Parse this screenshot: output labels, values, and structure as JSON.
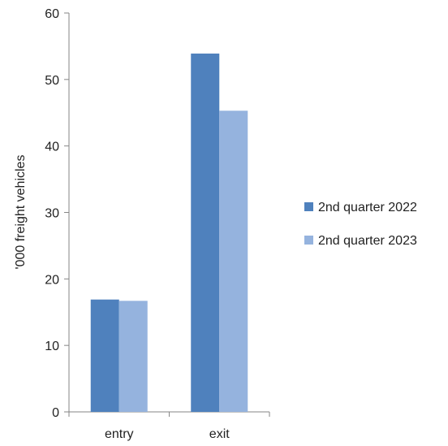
{
  "chart_data": {
    "type": "bar",
    "categories": [
      "entry",
      "exit"
    ],
    "series": [
      {
        "name": "2nd quarter 2022",
        "values": [
          16.9,
          53.9
        ],
        "color": "#4f81bd"
      },
      {
        "name": "2nd quarter 2023",
        "values": [
          16.7,
          45.3
        ],
        "color": "#95b3de"
      }
    ],
    "xlabel": "",
    "ylabel": "'000 freight vehicles",
    "ylim": [
      0,
      60
    ],
    "yticks": [
      0,
      10,
      20,
      30,
      40,
      50,
      60
    ],
    "grid": false,
    "legend_position": "right"
  }
}
